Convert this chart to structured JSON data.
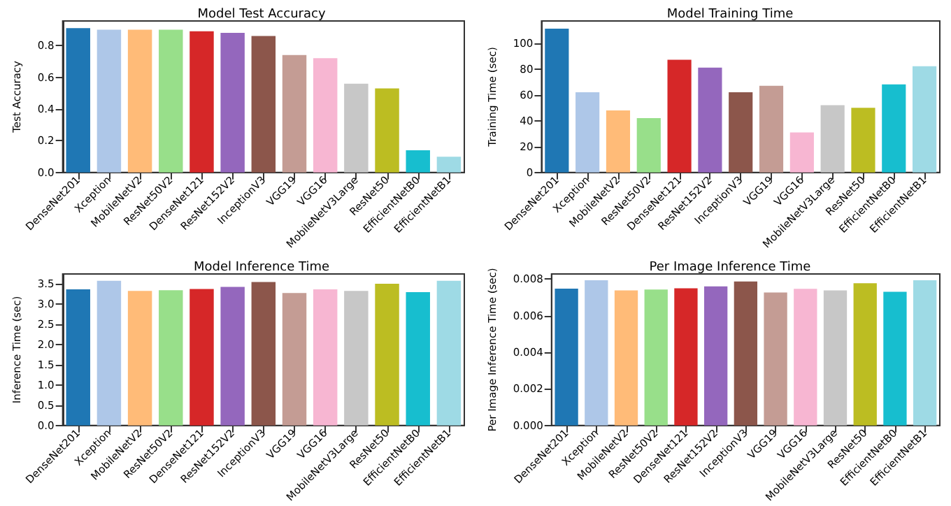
{
  "chart_data": [
    {
      "type": "bar",
      "title": "Model Test Accuracy",
      "ylabel": "Test Accuracy",
      "categories": [
        "DenseNet201",
        "Xception",
        "MobileNetV2",
        "ResNet50V2",
        "DenseNet121",
        "ResNet152V2",
        "InceptionV3",
        "VGG19",
        "VGG16",
        "MobileNetV3Large",
        "ResNet50",
        "EfficientNetB0",
        "EfficientNetB1"
      ],
      "values": [
        0.91,
        0.9,
        0.9,
        0.9,
        0.89,
        0.88,
        0.86,
        0.74,
        0.72,
        0.56,
        0.53,
        0.14,
        0.1
      ],
      "colors": [
        "#1f77b4",
        "#aec7e8",
        "#ffbb78",
        "#98df8a",
        "#d62728",
        "#9467bd",
        "#8c564b",
        "#c49c94",
        "#f7b6d2",
        "#c7c7c7",
        "#bcbd22",
        "#17becf",
        "#9edae5"
      ],
      "ylim": [
        0,
        0.955
      ],
      "yticks": [
        {
          "value": 0,
          "label": "0.0"
        },
        {
          "value": 0.2,
          "label": "0.2"
        },
        {
          "value": 0.4,
          "label": "0.4"
        },
        {
          "value": 0.6,
          "label": "0.6"
        },
        {
          "value": 0.8,
          "label": "0.8"
        }
      ],
      "grid": false
    },
    {
      "type": "bar",
      "title": "Model Training Time",
      "ylabel": "Training Time (sec)",
      "categories": [
        "DenseNet201",
        "Xception",
        "MobileNetV2",
        "ResNet50V2",
        "DenseNet121",
        "ResNet152V2",
        "InceptionV3",
        "VGG19",
        "VGG16",
        "MobileNetV3Large",
        "ResNet50",
        "EfficientNetB0",
        "EfficientNetB1"
      ],
      "values": [
        111,
        62,
        48,
        42,
        87,
        81,
        62,
        67,
        31,
        52,
        50,
        68,
        82
      ],
      "colors": [
        "#1f77b4",
        "#aec7e8",
        "#ffbb78",
        "#98df8a",
        "#d62728",
        "#9467bd",
        "#8c564b",
        "#c49c94",
        "#f7b6d2",
        "#c7c7c7",
        "#bcbd22",
        "#17becf",
        "#9edae5"
      ],
      "ylim": [
        0,
        117
      ],
      "yticks": [
        0,
        20,
        40,
        60,
        80,
        100
      ],
      "grid": false
    },
    {
      "type": "bar",
      "title": "Model Inference Time",
      "ylabel": "Inference Time (sec)",
      "categories": [
        "DenseNet201",
        "Xception",
        "MobileNetV2",
        "ResNet50V2",
        "DenseNet121",
        "ResNet152V2",
        "InceptionV3",
        "VGG19",
        "VGG16",
        "MobileNetV3Large",
        "ResNet50",
        "EfficientNetB0",
        "EfficientNetB1"
      ],
      "values": [
        3.36,
        3.57,
        3.32,
        3.34,
        3.37,
        3.42,
        3.54,
        3.27,
        3.36,
        3.32,
        3.5,
        3.29,
        3.57
      ],
      "colors": [
        "#1f77b4",
        "#aec7e8",
        "#ffbb78",
        "#98df8a",
        "#d62728",
        "#9467bd",
        "#8c564b",
        "#c49c94",
        "#f7b6d2",
        "#c7c7c7",
        "#bcbd22",
        "#17becf",
        "#9edae5"
      ],
      "ylim": [
        0,
        3.74
      ],
      "yticks": [
        {
          "value": 0,
          "label": "0.0"
        },
        {
          "value": 0.5,
          "label": "0.5"
        },
        {
          "value": 1,
          "label": "1.0"
        },
        {
          "value": 1.5,
          "label": "1.5"
        },
        {
          "value": 2,
          "label": "2.0"
        },
        {
          "value": 2.5,
          "label": "2.5"
        },
        {
          "value": 3,
          "label": "3.0"
        },
        {
          "value": 3.5,
          "label": "3.5"
        }
      ],
      "grid": false
    },
    {
      "type": "bar",
      "title": "Per Image Inference Time",
      "ylabel": "Per Image Inference Time (sec)",
      "categories": [
        "DenseNet201",
        "Xception",
        "MobileNetV2",
        "ResNet50V2",
        "DenseNet121",
        "ResNet152V2",
        "InceptionV3",
        "VGG19",
        "VGG16",
        "MobileNetV3Large",
        "ResNet50",
        "EfficientNetB0",
        "EfficientNetB1"
      ],
      "values": [
        0.00747,
        0.00793,
        0.00737,
        0.00742,
        0.00749,
        0.00759,
        0.00786,
        0.00726,
        0.00746,
        0.00737,
        0.00776,
        0.0073,
        0.00793
      ],
      "colors": [
        "#1f77b4",
        "#aec7e8",
        "#ffbb78",
        "#98df8a",
        "#d62728",
        "#9467bd",
        "#8c564b",
        "#c49c94",
        "#f7b6d2",
        "#c7c7c7",
        "#bcbd22",
        "#17becf",
        "#9edae5"
      ],
      "ylim": [
        0,
        0.00827
      ],
      "yticks": [
        {
          "value": 0,
          "label": "0.000"
        },
        {
          "value": 0.002,
          "label": "0.002"
        },
        {
          "value": 0.004,
          "label": "0.004"
        },
        {
          "value": 0.006,
          "label": "0.006"
        },
        {
          "value": 0.008,
          "label": "0.008"
        }
      ],
      "grid": false
    }
  ]
}
